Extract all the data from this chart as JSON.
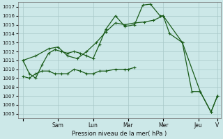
{
  "xlabel": "Pression niveau de la mer( hPa )",
  "bg_color": "#cce8e8",
  "grid_color": "#a8c8c8",
  "line_color": "#1a5c1a",
  "ylim": [
    1004.5,
    1017.5
  ],
  "yticks": [
    1005,
    1006,
    1007,
    1008,
    1009,
    1010,
    1011,
    1012,
    1013,
    1014,
    1015,
    1016,
    1017
  ],
  "xlim": [
    -8,
    310
  ],
  "day_positions": [
    0,
    55,
    110,
    165,
    220,
    275,
    305
  ],
  "day_labels": [
    "",
    "Sam",
    "Lun",
    "Mar",
    "Mer",
    "Jeu",
    "V"
  ],
  "line1_x": [
    0,
    10,
    20,
    30,
    40,
    50,
    60,
    70,
    80,
    90,
    100,
    110,
    120,
    130,
    145,
    160,
    175,
    188,
    200,
    215,
    220,
    230,
    250,
    265,
    278,
    295,
    305
  ],
  "line1_y": [
    1011.0,
    1009.5,
    1009.0,
    1010.5,
    1011.8,
    1012.2,
    1012.0,
    1011.8,
    1012.0,
    1011.8,
    1011.5,
    1011.2,
    1012.8,
    1014.5,
    1016.0,
    1014.8,
    1015.0,
    1017.2,
    1017.3,
    1016.0,
    1016.0,
    1014.0,
    1013.0,
    1007.5,
    1007.5,
    1005.2,
    1007.0
  ],
  "line2_x": [
    0,
    20,
    40,
    55,
    70,
    85,
    100,
    115,
    130,
    145,
    160,
    175,
    190,
    205,
    220,
    250,
    278,
    295,
    305
  ],
  "line2_y": [
    1011.0,
    1011.5,
    1012.3,
    1012.5,
    1011.5,
    1011.2,
    1012.0,
    1013.0,
    1014.2,
    1015.2,
    1015.0,
    1015.2,
    1015.3,
    1015.5,
    1016.0,
    1013.0,
    1007.5,
    1005.2,
    1007.0
  ],
  "line3_x": [
    0,
    10,
    20,
    30,
    40,
    50,
    60,
    70,
    80,
    90,
    100,
    110,
    120,
    130,
    145,
    160,
    165,
    175
  ],
  "line3_y": [
    1009.2,
    1009.0,
    1009.5,
    1009.8,
    1009.8,
    1009.5,
    1009.5,
    1009.5,
    1010.0,
    1009.8,
    1009.5,
    1009.5,
    1009.8,
    1009.8,
    1010.0,
    1010.0,
    1010.0,
    1010.2
  ]
}
